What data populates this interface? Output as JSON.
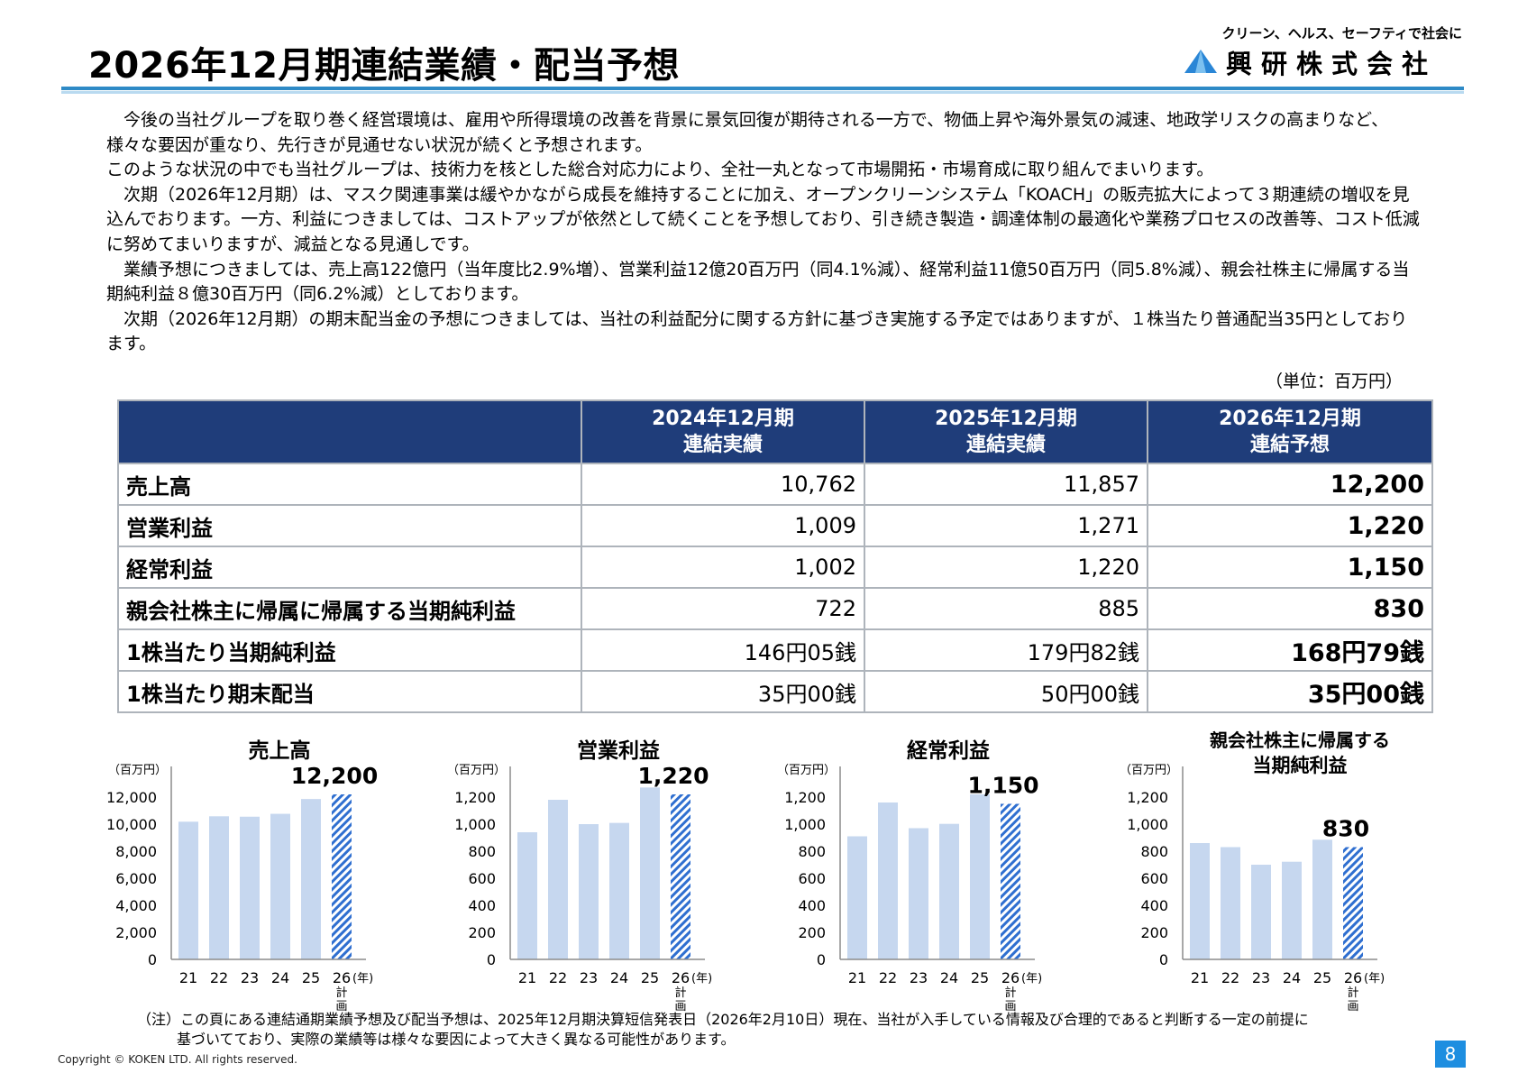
{
  "header": {
    "title": "2026年12月期連結業績・配当予想",
    "logo_tagline": "クリーン、ヘルス、セーフティで社会に",
    "logo_name": "興研株式会社"
  },
  "body_paragraphs": [
    "　今後の当社グループを取り巻く経営環境は、雇用や所得環境の改善を背景に景気回復が期待される一方で、物価上昇や海外景気の減速、地政学リスクの高まりなど、様々な要因が重なり、先行きが見通せない状況が続くと予想されます。",
    " このような状況の中でも当社グループは、技術力を核とした総合対応力により、全社一丸となって市場開拓・市場育成に取り組んでまいります。",
    "　次期（2026年12月期）は、マスク関連事業は緩やかながら成長を維持することに加え、オープンクリーンシステム「KOACH」の販売拡大によって３期連続の増収を見込んでおります。一方、利益につきましては、コストアップが依然として続くことを予想しており、引き続き製造・調達体制の最適化や業務プロセスの改善等、コスト低減に努めてまいりますが、減益となる見通しです。",
    "　業績予想につきましては、売上高122億円（当年度比2.9%増）、営業利益12億20百万円（同4.1%減）、経常利益11億50百万円（同5.8%減）、親会社株主に帰属する当期純利益８億30百万円（同6.2%減）としております。",
    "　次期（2026年12月期）の期末配当金の予想につきましては、当社の利益配分に関する方針に基づき実施する予定ではありますが、１株当たり普通配当35円としております。"
  ],
  "unit_label": "（単位：百万円）",
  "table": {
    "headers": [
      {
        "line1": "2024年12月期",
        "line2": "連結実績"
      },
      {
        "line1": "2025年12月期",
        "line2": "連結実績"
      },
      {
        "line1": "2026年12月期",
        "line2": "連結予想"
      }
    ],
    "rows": [
      {
        "label": "売上高",
        "v2024": "10,762",
        "v2025": "11,857",
        "v2026": "12,200"
      },
      {
        "label": "営業利益",
        "v2024": "1,009",
        "v2025": "1,271",
        "v2026": "1,220"
      },
      {
        "label": "経常利益",
        "v2024": "1,002",
        "v2025": "1,220",
        "v2026": "1,150"
      },
      {
        "label": "親会社株主に帰属に帰属する当期純利益",
        "v2024": "722",
        "v2025": "885",
        "v2026": "830"
      },
      {
        "label": "1株当たり当期純利益",
        "v2024": "146円05銭",
        "v2025": "179円82銭",
        "v2026": "168円79銭"
      },
      {
        "label": "1株当たり期末配当",
        "v2024": "35円00銭",
        "v2025": "50円00銭",
        "v2026": "35円00銭"
      }
    ]
  },
  "colors": {
    "bar_fill": "#c6d7ef",
    "bar_hatch": "#2f6fd0",
    "axis": "#8c8c8c",
    "header_bg": "#1f3d7a"
  },
  "chart_data": [
    {
      "type": "bar",
      "title": [
        "売上高"
      ],
      "unit": "（百万円）",
      "categories": [
        "21",
        "22",
        "23",
        "24",
        "25",
        "26"
      ],
      "plan_label": [
        "計",
        "画"
      ],
      "year_suffix": "(年)",
      "values": [
        10180,
        10580,
        10550,
        10762,
        11857,
        12200
      ],
      "plan_index": 5,
      "highlight_label": "12,200",
      "ylim": [
        0,
        14000
      ],
      "ticks": [
        0,
        2000,
        4000,
        6000,
        8000,
        10000,
        12000
      ],
      "tick_labels": [
        "0",
        "2,000",
        "4,000",
        "6,000",
        "8,000",
        "10,000",
        "12,000"
      ]
    },
    {
      "type": "bar",
      "title": [
        "営業利益"
      ],
      "unit": "（百万円）",
      "categories": [
        "21",
        "22",
        "23",
        "24",
        "25",
        "26"
      ],
      "plan_label": [
        "計",
        "画"
      ],
      "year_suffix": "(年)",
      "values": [
        940,
        1180,
        1000,
        1009,
        1271,
        1220
      ],
      "plan_index": 5,
      "highlight_label": "1,220",
      "ylim": [
        0,
        1400
      ],
      "ticks": [
        0,
        200,
        400,
        600,
        800,
        1000,
        1200
      ],
      "tick_labels": [
        "0",
        "200",
        "400",
        "600",
        "800",
        "1,000",
        "1,200"
      ]
    },
    {
      "type": "bar",
      "title": [
        "経常利益"
      ],
      "unit": "（百万円）",
      "categories": [
        "21",
        "22",
        "23",
        "24",
        "25",
        "26"
      ],
      "plan_label": [
        "計",
        "画"
      ],
      "year_suffix": "(年)",
      "values": [
        910,
        1160,
        970,
        1002,
        1220,
        1150
      ],
      "plan_index": 5,
      "highlight_label": "1,150",
      "ylim": [
        0,
        1400
      ],
      "ticks": [
        0,
        200,
        400,
        600,
        800,
        1000,
        1200
      ],
      "tick_labels": [
        "0",
        "200",
        "400",
        "600",
        "800",
        "1,000",
        "1,200"
      ]
    },
    {
      "type": "bar",
      "title": [
        "親会社株主に帰属する",
        "当期純利益"
      ],
      "unit": "（百万円）",
      "categories": [
        "21",
        "22",
        "23",
        "24",
        "25",
        "26"
      ],
      "plan_label": [
        "計",
        "画"
      ],
      "year_suffix": "(年)",
      "values": [
        860,
        830,
        700,
        722,
        885,
        830
      ],
      "plan_index": 5,
      "highlight_label": "830",
      "ylim": [
        0,
        1400
      ],
      "ticks": [
        0,
        200,
        400,
        600,
        800,
        1000,
        1200
      ],
      "tick_labels": [
        "0",
        "200",
        "400",
        "600",
        "800",
        "1,000",
        "1,200"
      ]
    }
  ],
  "note": {
    "line1": "（注）この頁にある連結通期業績予想及び配当予想は、2025年12月期決算短信発表日（2026年2月10日）現在、当社が入手している情報及び合理的であると判断する一定の前提に",
    "line2": "基づいてており、実際の業績等は様々な要因によって大きく異なる可能性があります。"
  },
  "footer": {
    "copyright": "Copyright © KOKEN LTD. All rights reserved.",
    "page_number": "8"
  }
}
